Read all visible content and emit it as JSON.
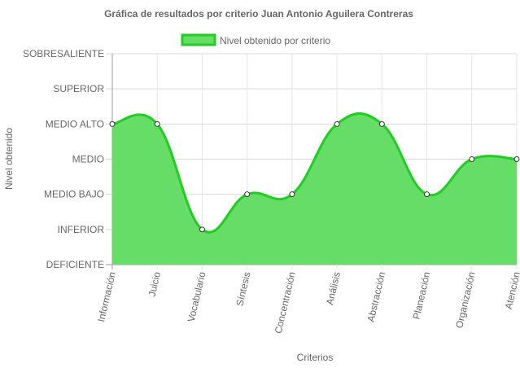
{
  "chart_data": {
    "type": "area",
    "title": "Gráfica de resultados por criterio Juan Antonio Aguilera  Contreras",
    "xlabel": "Criterios",
    "ylabel": "Nivel obtenido",
    "y_levels": [
      "DEFICIENTE",
      "INFERIOR",
      "MEDIO BAJO",
      "MEDIO",
      "MEDIO ALTO",
      "SUPERIOR",
      "SOBRESALIENTE"
    ],
    "ylim": [
      0,
      6
    ],
    "categories": [
      "Información",
      "Juicio",
      "Vocabulario",
      "Síntesis",
      "Concentración",
      "Análisis",
      "Abstracción",
      "Planeación",
      "Organización",
      "Atención"
    ],
    "series": [
      {
        "name": "Nivel obtenido por criterio",
        "values": [
          4,
          4,
          1,
          2,
          2,
          4,
          4,
          2,
          3,
          3
        ],
        "line_color": "#22cc22",
        "fill_color": "#66dd66"
      }
    ],
    "legend_position": "top",
    "grid": true
  }
}
